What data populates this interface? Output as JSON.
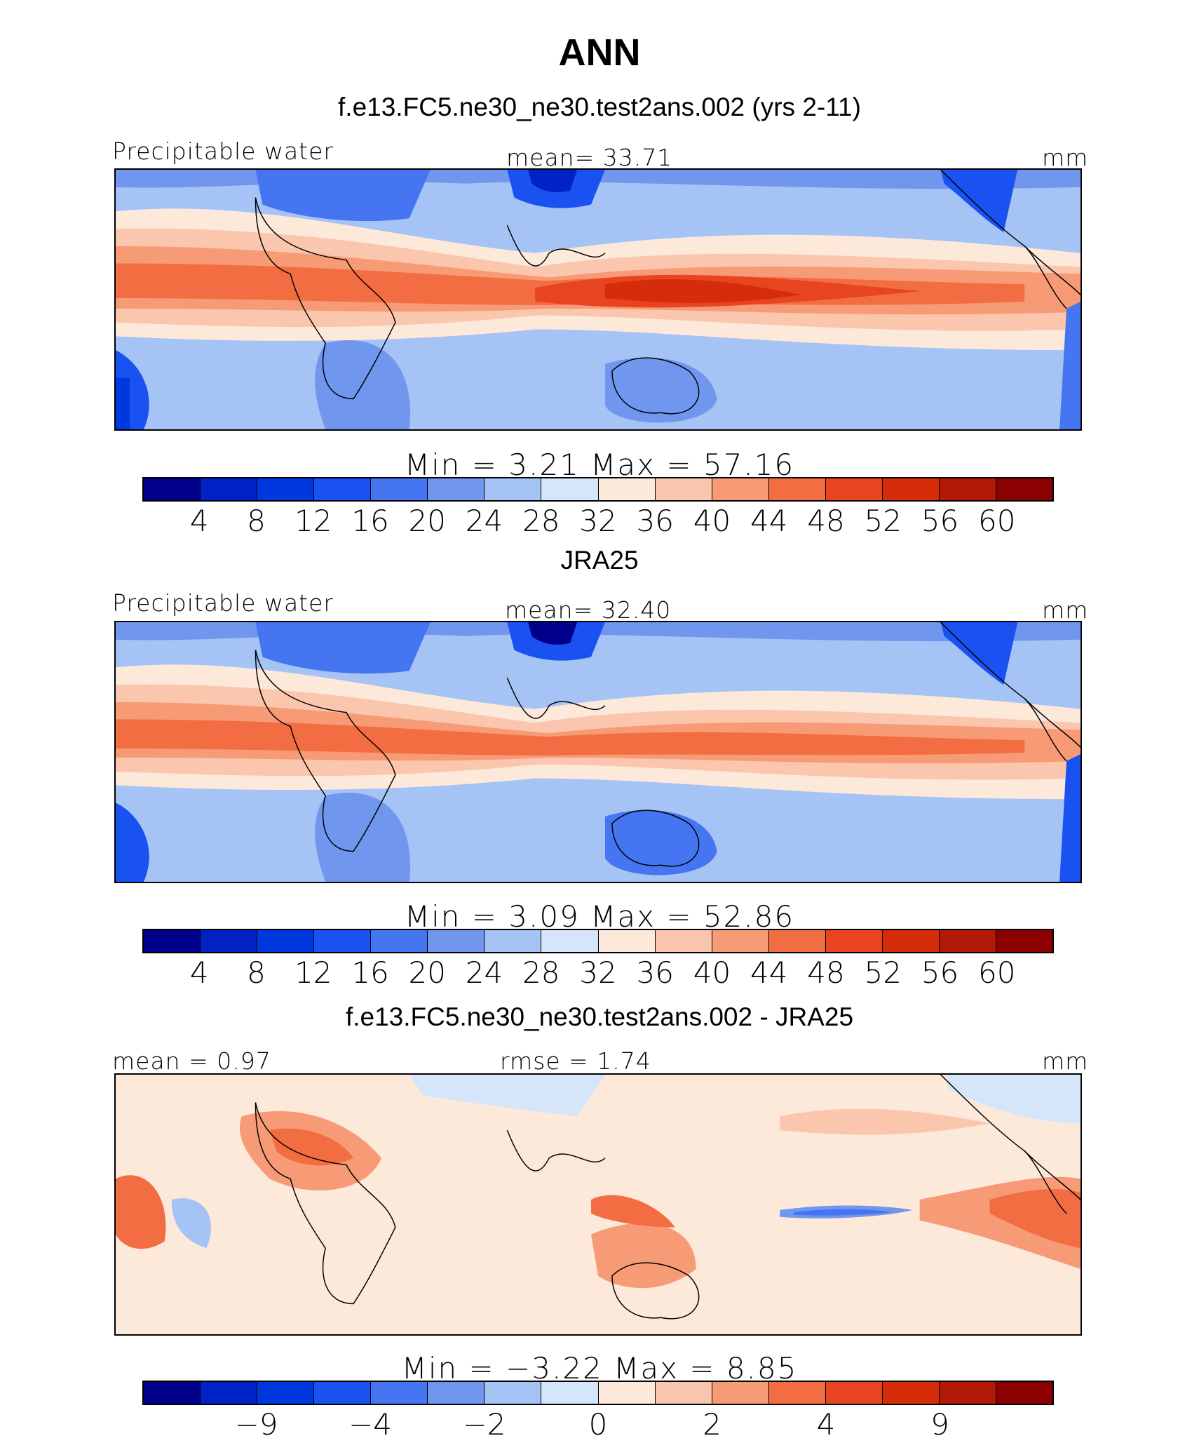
{
  "main_title": "ANN",
  "units": "mm",
  "colors": [
    "#00008b",
    "#0022c4",
    "#0038e0",
    "#1a52f2",
    "#4575f0",
    "#7096ee",
    "#a6c3f5",
    "#d5e5fa",
    "#fde9da",
    "#fbc6ae",
    "#f79b76",
    "#f26e42",
    "#e84422",
    "#d52c0a",
    "#b21a07",
    "#8b0000"
  ],
  "panels": [
    {
      "title": "f.e13.FC5.ne30_ne30.test2ans.002 (yrs 2-11)",
      "variable": "Precipitable water",
      "mean_label": "mean=   33.71",
      "stats": "Min =     3.21  Max =    57.16",
      "ticks": [
        "4",
        "8",
        "12",
        "16",
        "20",
        "24",
        "28",
        "32",
        "36",
        "40",
        "44",
        "48",
        "52",
        "56",
        "60"
      ]
    },
    {
      "title": "JRA25",
      "variable": "Precipitable water",
      "mean_label": "mean=   32.40",
      "stats": "Min =     3.09  Max =    52.86",
      "ticks": [
        "4",
        "8",
        "12",
        "16",
        "20",
        "24",
        "28",
        "32",
        "36",
        "40",
        "44",
        "48",
        "52",
        "56",
        "60"
      ]
    },
    {
      "title": "f.e13.FC5.ne30_ne30.test2ans.002 - JRA25",
      "mean_label": "mean =    0.97",
      "rmse_label": "rmse =     1.74",
      "stats": "Min =   −3.22  Max =     8.85",
      "ticks": [
        "−9",
        "−4",
        "−2",
        "0",
        "2",
        "4",
        "9"
      ]
    }
  ]
}
